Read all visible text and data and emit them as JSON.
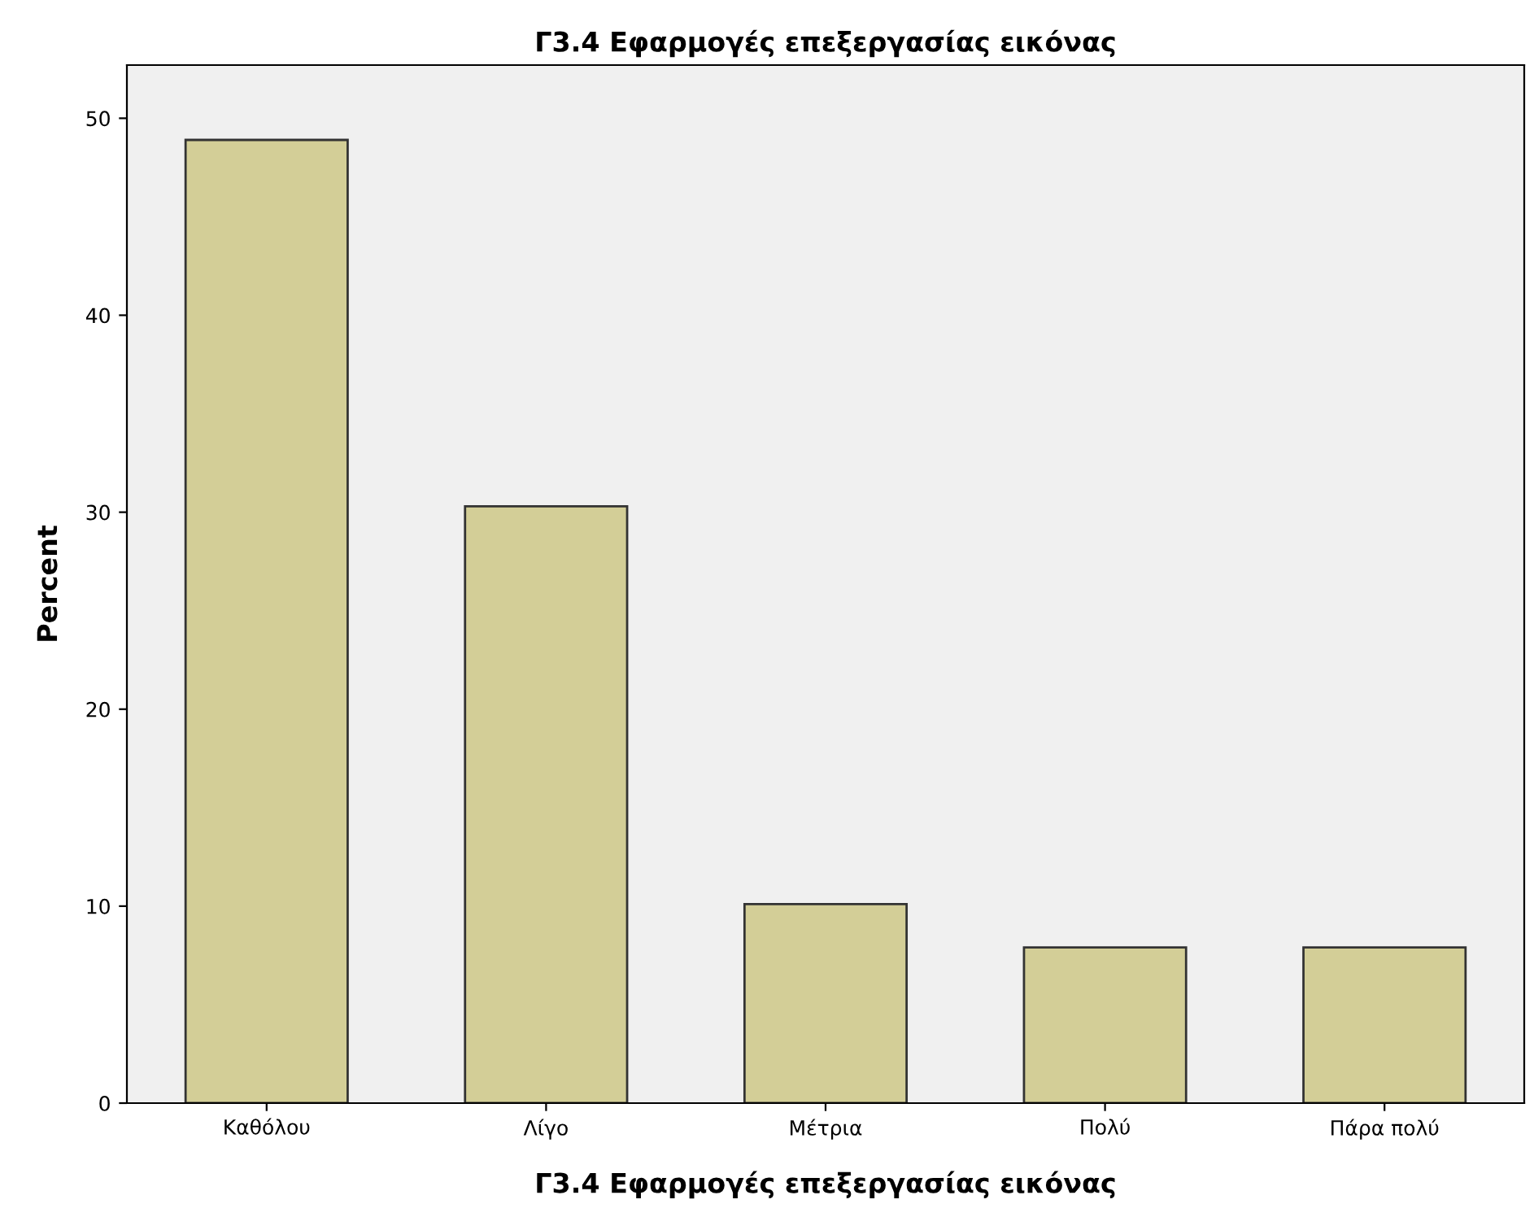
{
  "chart_data": {
    "type": "bar",
    "title": "Γ3.4 Εφαρμογές επεξεργασίας εικόνας",
    "xlabel": "Γ3.4 Εφαρμογές επεξεργασίας εικόνας",
    "ylabel": "Percent",
    "categories": [
      "Καθόλου",
      "Λίγο",
      "Μέτρια",
      "Πολύ",
      "Πάρα πολύ"
    ],
    "values": [
      48.9,
      30.3,
      10.1,
      7.9,
      7.9
    ],
    "color": "#d3ce97",
    "ylim": [
      0,
      52.7
    ],
    "yticks": [
      0,
      10,
      20,
      30,
      40,
      50
    ],
    "grid": false
  }
}
